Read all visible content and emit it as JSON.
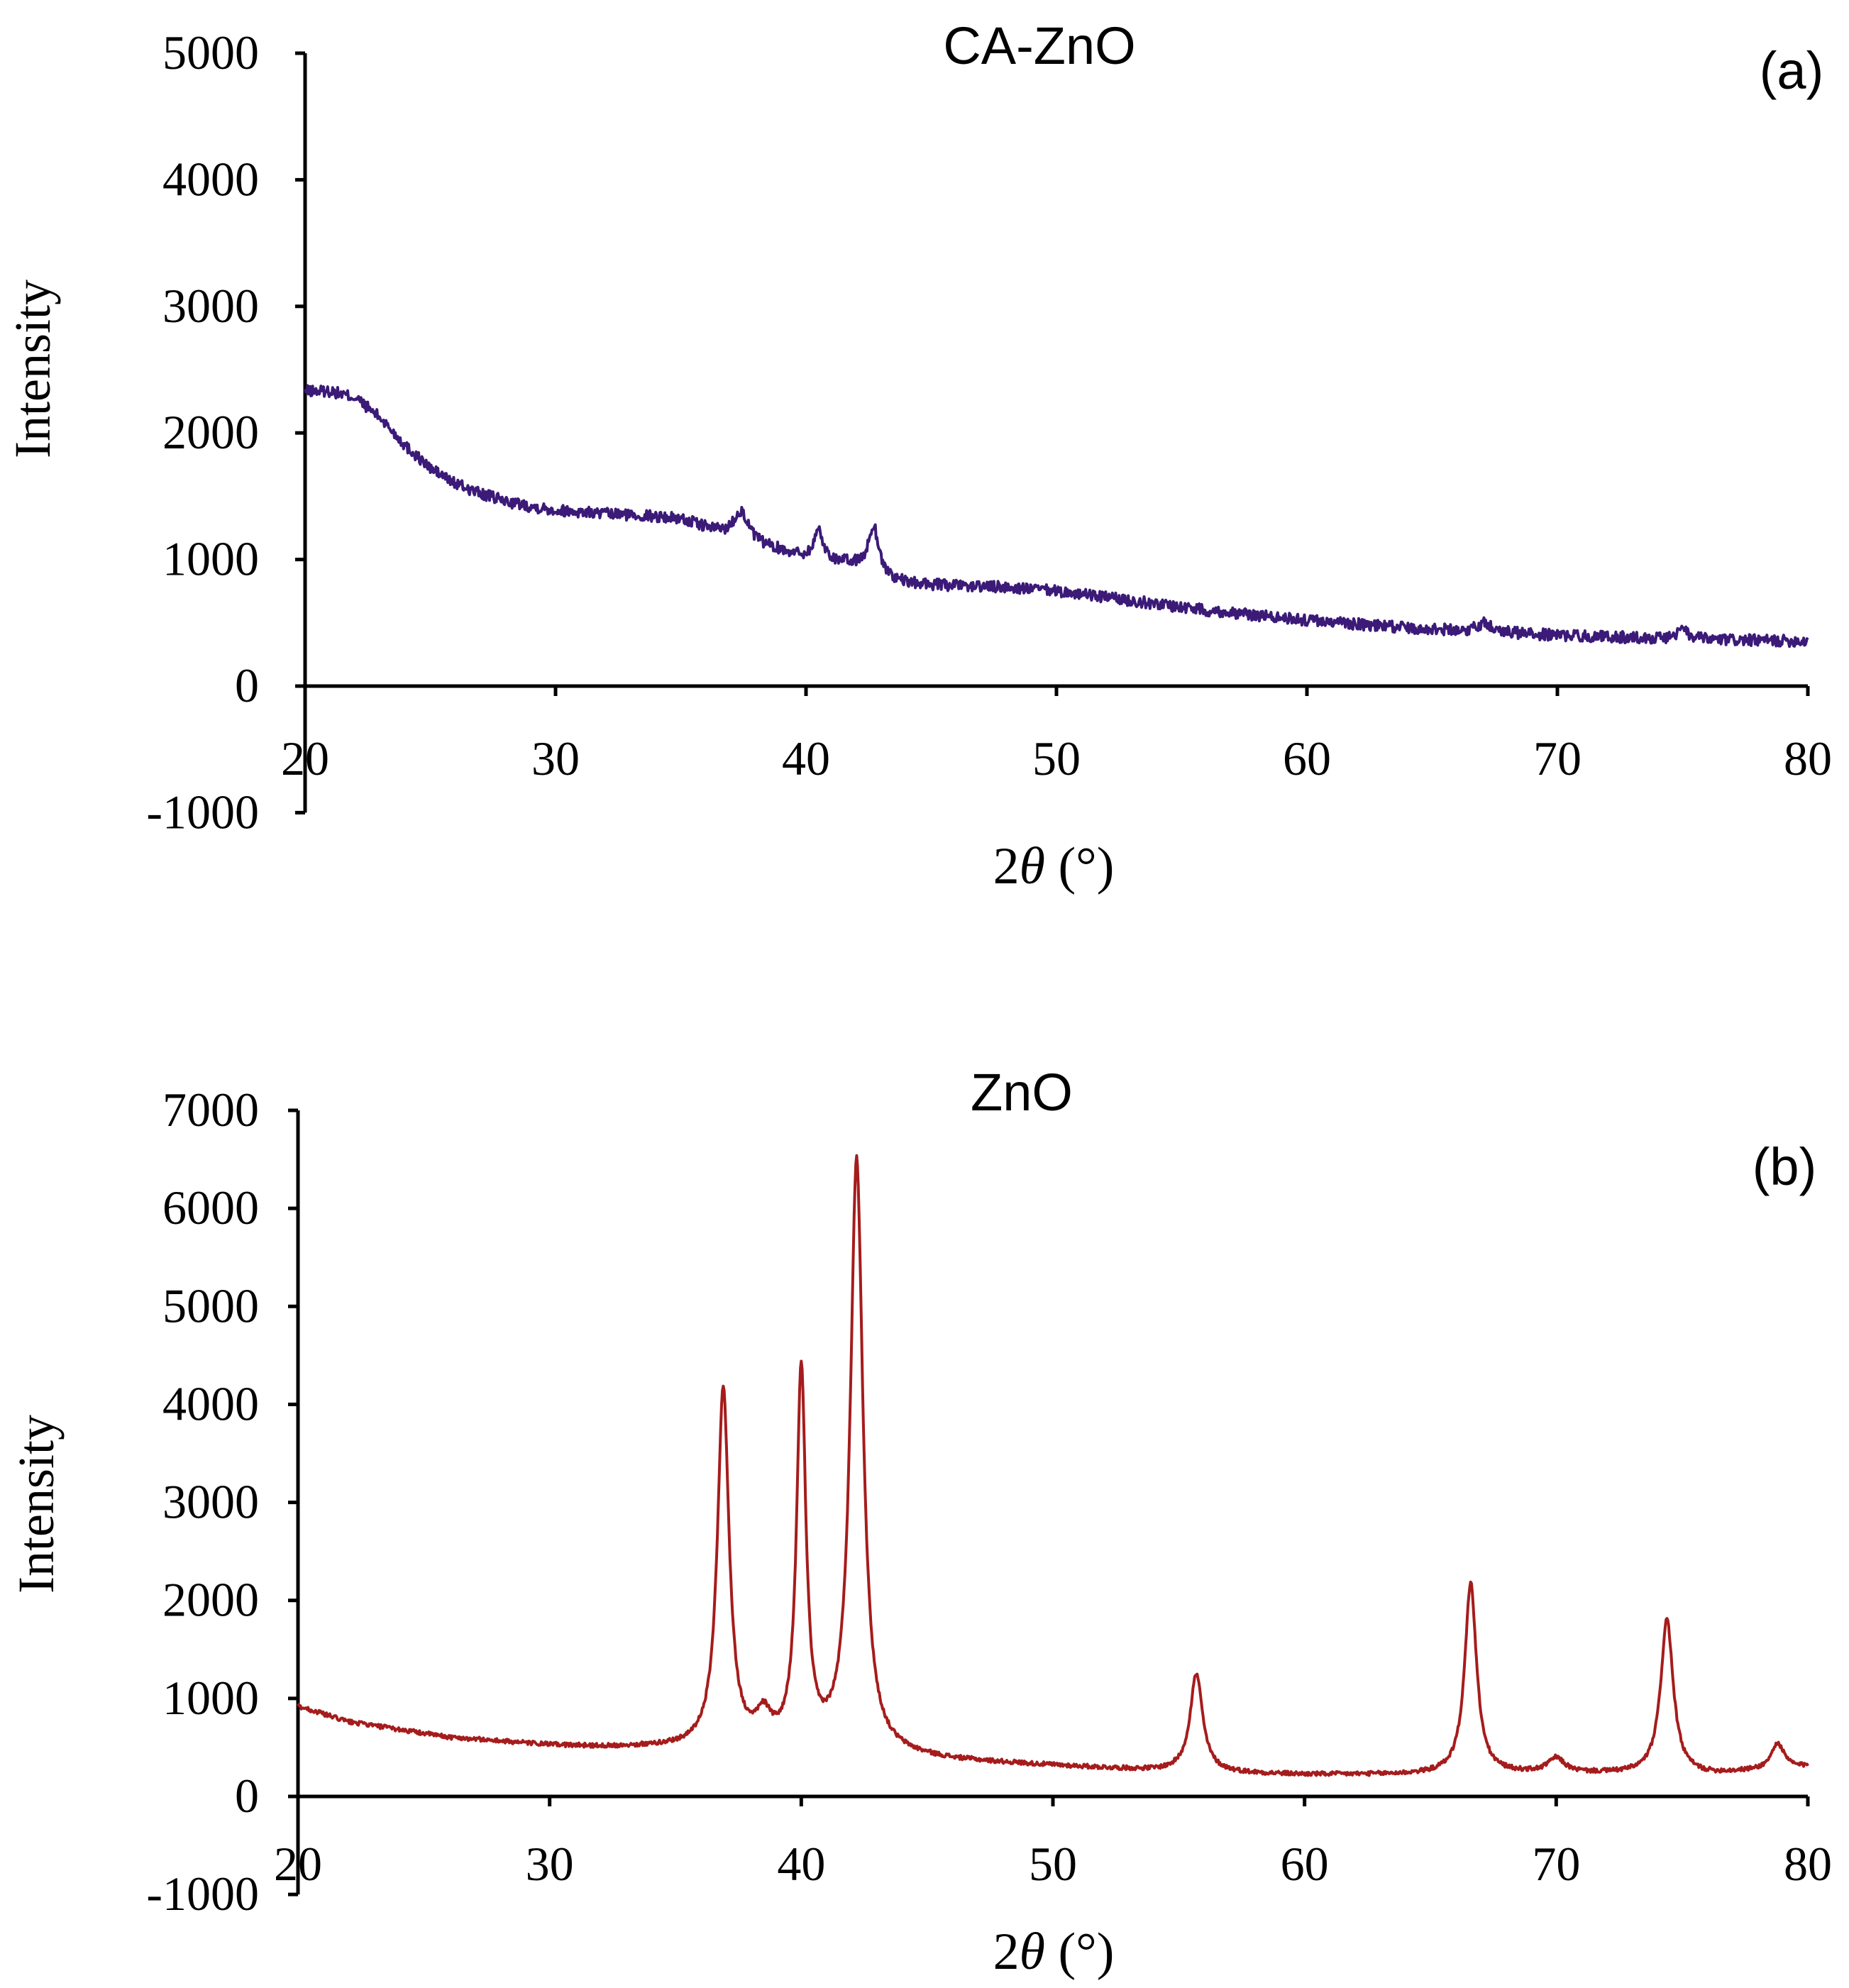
{
  "chart_data": [
    {
      "type": "line",
      "title": "CA-ZnO",
      "panel_label": "(a)",
      "xlabel_prefix": "2",
      "xlabel_theta": "θ",
      "xlabel_suffix": " (°)",
      "ylabel": "Intensity",
      "xlim": [
        20,
        80
      ],
      "ylim": [
        -1000,
        5000
      ],
      "xticks": [
        "20",
        "30",
        "40",
        "50",
        "60",
        "70",
        "80"
      ],
      "yticks": [
        "5000",
        "4000",
        "3000",
        "2000",
        "1000",
        "0",
        "-1000"
      ],
      "color": "#3b1a78",
      "series": [
        {
          "name": "CA-ZnO",
          "baseline": [
            [
              20,
              2330
            ],
            [
              21,
              2330
            ],
            [
              22,
              2280
            ],
            [
              23,
              2120
            ],
            [
              24,
              1900
            ],
            [
              25,
              1720
            ],
            [
              26,
              1600
            ],
            [
              27,
              1520
            ],
            [
              28,
              1460
            ],
            [
              29,
              1420
            ],
            [
              30,
              1390
            ],
            [
              32,
              1360
            ],
            [
              34,
              1340
            ],
            [
              35,
              1320
            ],
            [
              36,
              1250
            ],
            [
              37,
              1180
            ],
            [
              38,
              1120
            ],
            [
              39,
              1070
            ],
            [
              40,
              1020
            ],
            [
              41,
              990
            ],
            [
              42,
              950
            ],
            [
              43,
              860
            ],
            [
              44,
              810
            ],
            [
              46,
              790
            ],
            [
              48,
              780
            ],
            [
              50,
              750
            ],
            [
              52,
              700
            ],
            [
              54,
              650
            ],
            [
              56,
              600
            ],
            [
              58,
              560
            ],
            [
              60,
              520
            ],
            [
              62,
              490
            ],
            [
              64,
              460
            ],
            [
              66,
              440
            ],
            [
              68,
              420
            ],
            [
              70,
              400
            ],
            [
              72,
              390
            ],
            [
              74,
              375
            ],
            [
              76,
              365
            ],
            [
              78,
              360
            ],
            [
              80,
              355
            ]
          ],
          "peaks": [
            [
              37.4,
              230,
              0.35
            ],
            [
              40.5,
              230,
              0.2
            ],
            [
              42.7,
              380,
              0.25
            ],
            [
              67.1,
              80,
              0.3
            ],
            [
              75.0,
              70,
              0.3
            ]
          ]
        }
      ]
    },
    {
      "type": "line",
      "title": "ZnO",
      "panel_label": "(b)",
      "xlabel_prefix": "2",
      "xlabel_theta": "θ",
      "xlabel_suffix": " (°)",
      "ylabel": "Intensity",
      "xlim": [
        20,
        80
      ],
      "ylim": [
        -1000,
        7000
      ],
      "xticks": [
        "20",
        "30",
        "40",
        "50",
        "60",
        "70",
        "80"
      ],
      "yticks": [
        "7000",
        "6000",
        "5000",
        "4000",
        "3000",
        "2000",
        "1000",
        "0",
        "-1000"
      ],
      "color": "#a51c1c",
      "series": [
        {
          "name": "ZnO",
          "baseline": [
            [
              20,
              920
            ],
            [
              22,
              760
            ],
            [
              24,
              680
            ],
            [
              26,
              600
            ],
            [
              28,
              560
            ],
            [
              30,
              520
            ],
            [
              32,
              500
            ],
            [
              35,
              490
            ],
            [
              38,
              470
            ],
            [
              40,
              450
            ],
            [
              44,
              400
            ],
            [
              46,
              360
            ],
            [
              50,
              310
            ],
            [
              54,
              260
            ],
            [
              58,
              230
            ],
            [
              60,
              220
            ],
            [
              64,
              220
            ],
            [
              68,
              230
            ],
            [
              72,
              230
            ],
            [
              76,
              220
            ],
            [
              80,
              300
            ]
          ],
          "peaks": [
            [
              36.9,
              3650,
              0.28
            ],
            [
              38.5,
              280,
              0.35
            ],
            [
              40.0,
              3850,
              0.22
            ],
            [
              42.2,
              6050,
              0.3
            ],
            [
              55.7,
              1000,
              0.3
            ],
            [
              66.6,
              1950,
              0.28
            ],
            [
              70.0,
              150,
              0.4
            ],
            [
              74.4,
              1580,
              0.3
            ],
            [
              78.8,
              260,
              0.3
            ]
          ]
        }
      ]
    }
  ]
}
